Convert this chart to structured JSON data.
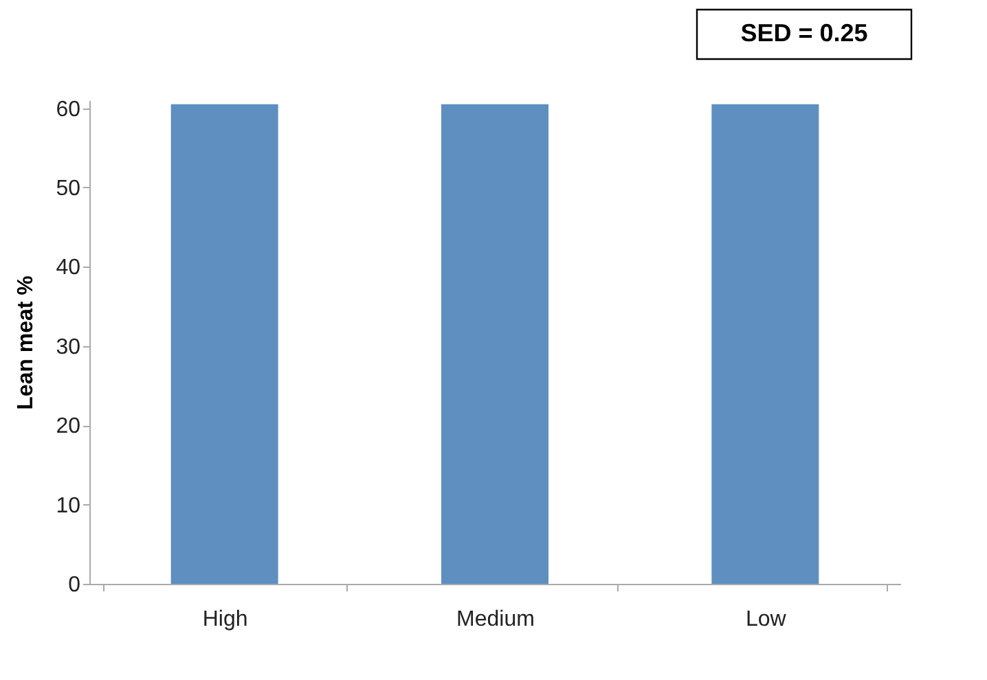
{
  "chart_data": {
    "type": "bar",
    "ylabel": "Lean meat %",
    "categories": [
      "High",
      "Medium",
      "Low"
    ],
    "values": [
      60.5,
      60.5,
      60.5
    ],
    "color": "#5f8fc0",
    "ylim": [
      0,
      61
    ],
    "yticks": [
      0,
      10,
      20,
      30,
      40,
      50,
      60
    ],
    "grid": false,
    "annotations": [
      "SED = 0.25"
    ]
  }
}
